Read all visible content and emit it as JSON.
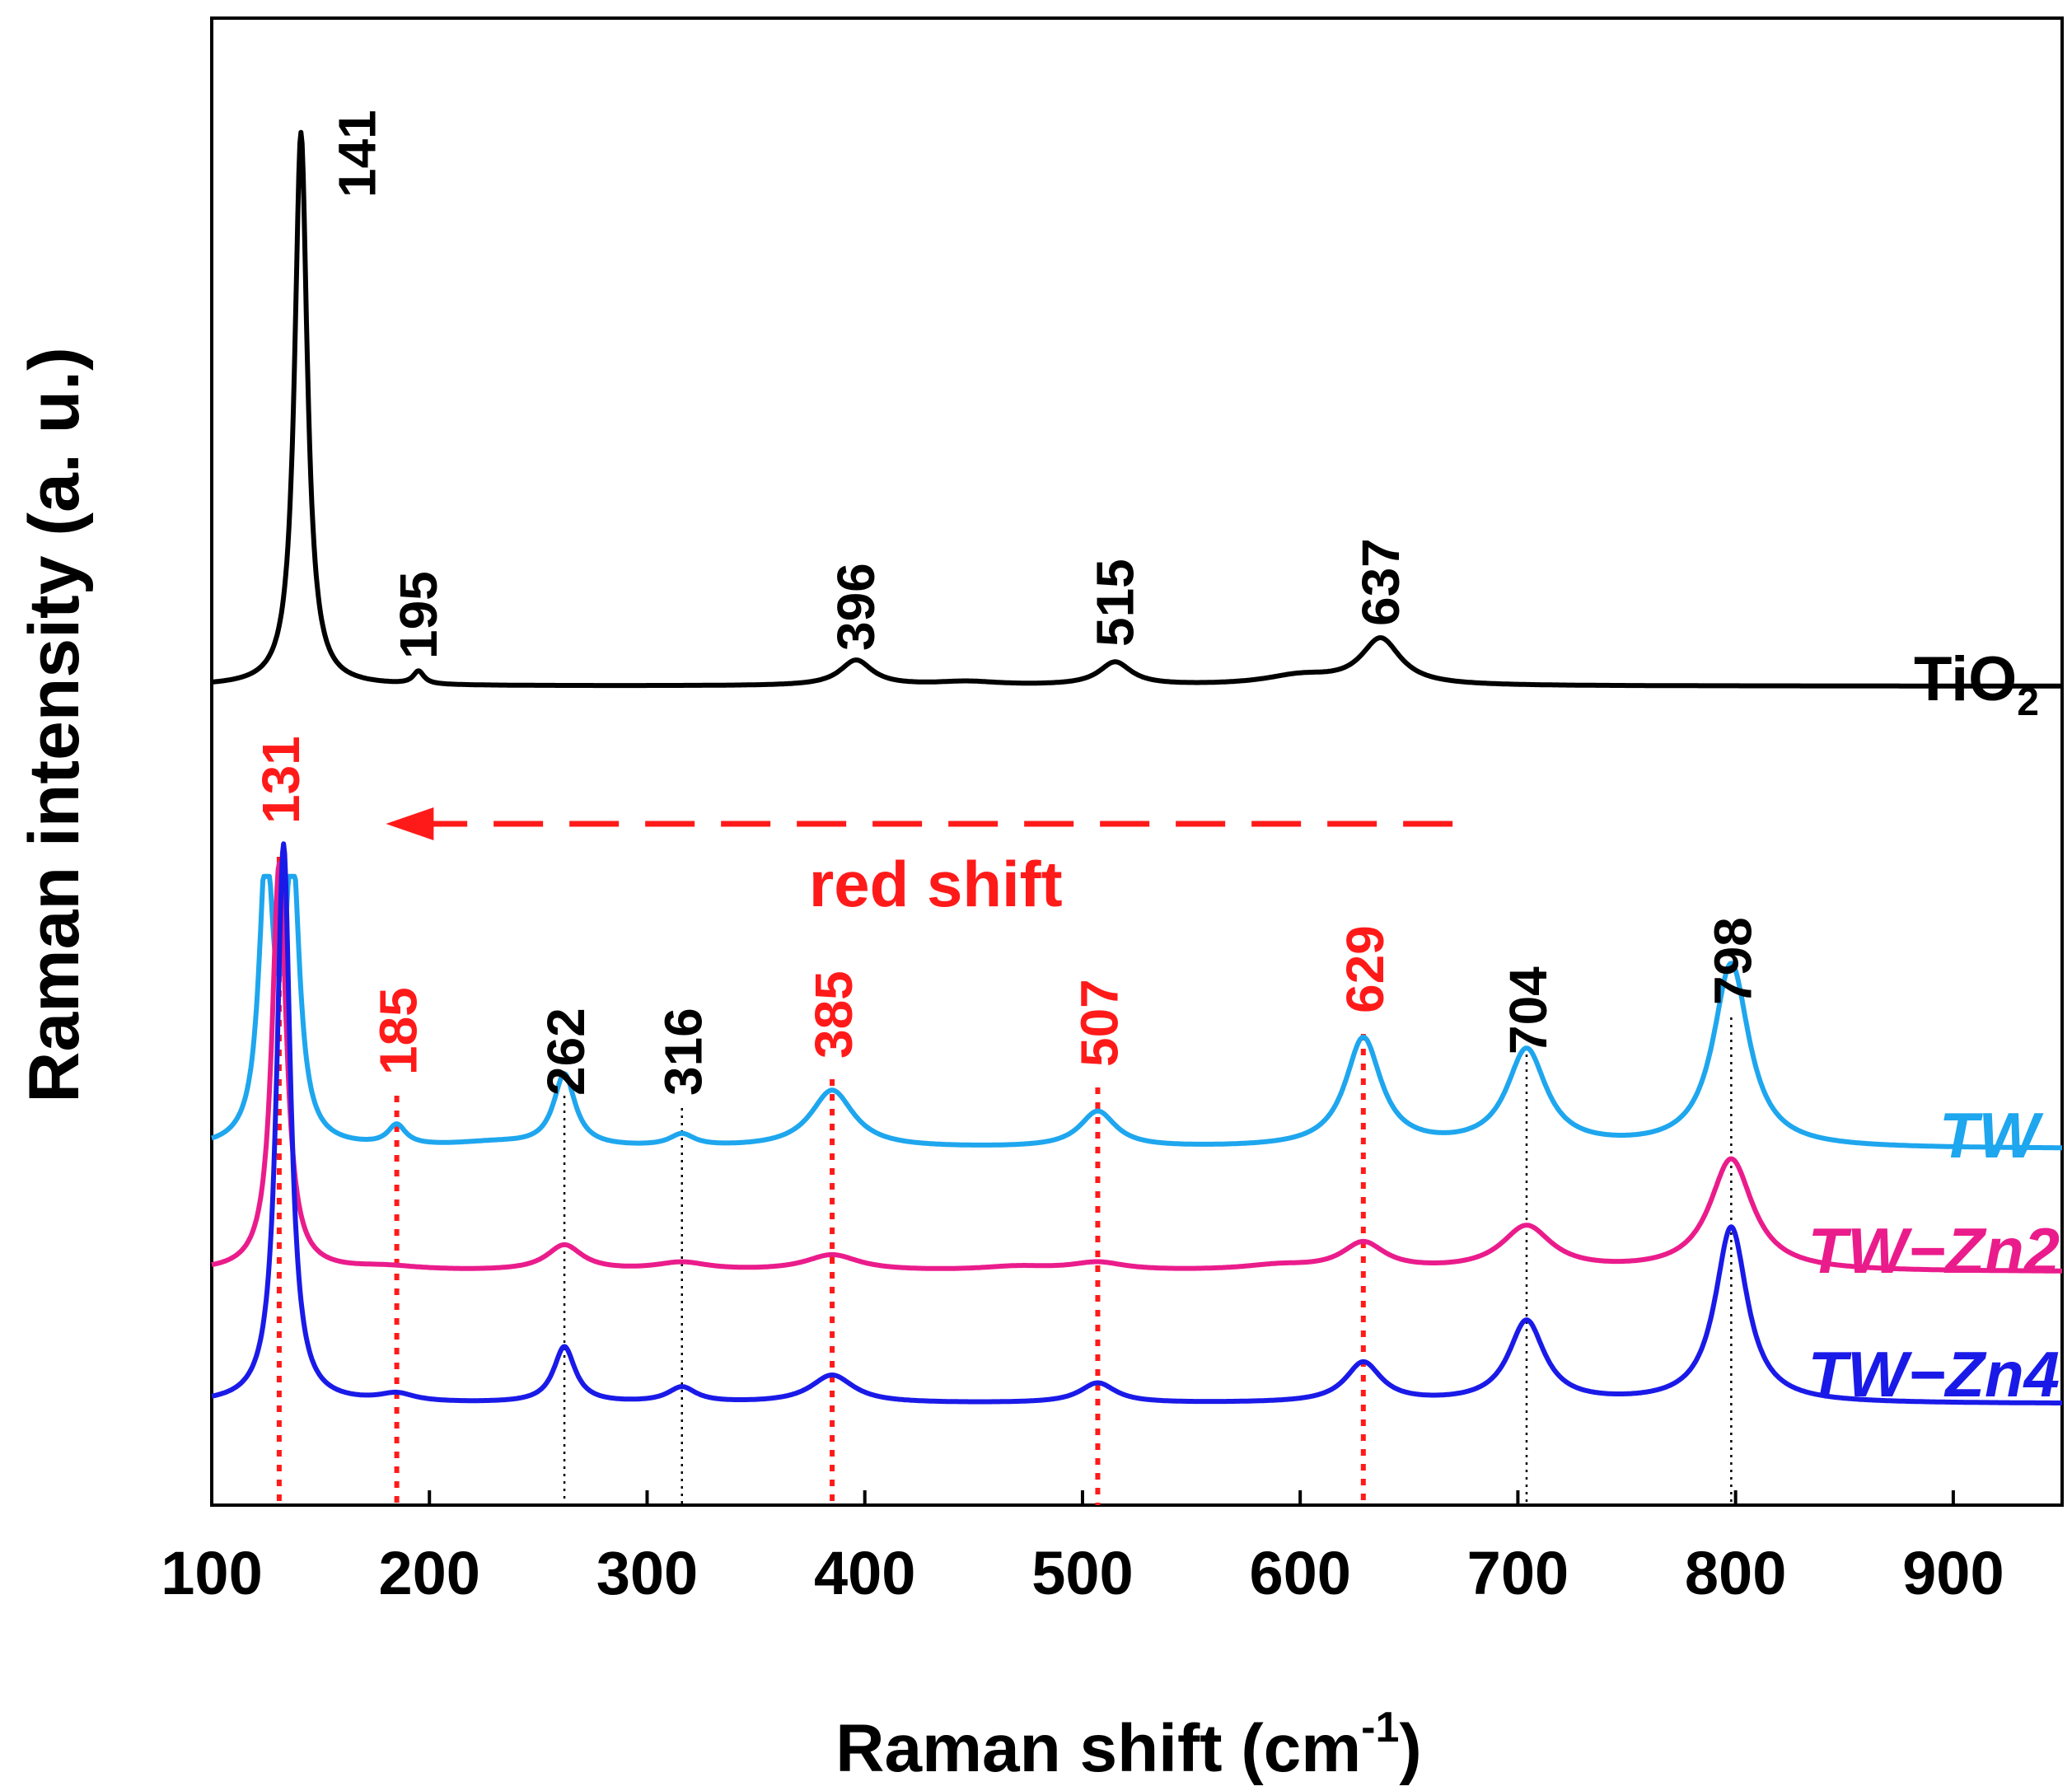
{
  "chart_data": {
    "type": "line",
    "title": "",
    "xlabel": "Raman shift (cm",
    "xlabel_sup": "-1",
    "xlabel_close": ")",
    "ylabel": "Raman intensity (a. u.)",
    "xlim": [
      100,
      950
    ],
    "x_ticks": [
      "100",
      "200",
      "300",
      "400",
      "500",
      "600",
      "700",
      "800",
      "900"
    ],
    "y_ticks": false,
    "grid": false,
    "legend": "labels at right end of each curve",
    "series": [
      {
        "name": "TiO",
        "name_sub": "2",
        "color": "#000000",
        "baseline": 0.52,
        "peaks": [
          {
            "x": 141,
            "height": 12.0,
            "width": 3.5
          },
          {
            "x": 195,
            "height": 0.28,
            "width": 3
          },
          {
            "x": 396,
            "height": 0.55,
            "width": 9
          },
          {
            "x": 447,
            "height": 0.08,
            "width": 18
          },
          {
            "x": 515,
            "height": 0.5,
            "width": 9
          },
          {
            "x": 600,
            "height": 0.2,
            "width": 20
          },
          {
            "x": 637,
            "height": 1.0,
            "width": 11
          }
        ],
        "peak_labels": [
          "141",
          "195",
          "396",
          "515",
          "637"
        ]
      },
      {
        "name": "TW",
        "color": "#1ea6ee",
        "baseline": 0.54,
        "peaks": [
          {
            "x": 125,
            "height": 3.5,
            "width": 4
          },
          {
            "x": 137,
            "height": 3.5,
            "width": 4
          },
          {
            "x": 185,
            "height": 0.25,
            "width": 5
          },
          {
            "x": 230,
            "height": 0.06,
            "width": 25
          },
          {
            "x": 262,
            "height": 0.9,
            "width": 6
          },
          {
            "x": 316,
            "height": 0.15,
            "width": 7
          },
          {
            "x": 385,
            "height": 0.72,
            "width": 12
          },
          {
            "x": 507,
            "height": 0.45,
            "width": 10
          },
          {
            "x": 629,
            "height": 1.36,
            "width": 10
          },
          {
            "x": 704,
            "height": 1.21,
            "width": 11
          },
          {
            "x": 798,
            "height": 2.3,
            "width": 10
          }
        ]
      },
      {
        "name": "TW−Zn2",
        "color": "#ea1c8c",
        "baseline": 0.3,
        "peaks": [
          {
            "x": 131,
            "height": 5.1,
            "width": 4
          },
          {
            "x": 180,
            "height": 0.05,
            "width": 20
          },
          {
            "x": 262,
            "height": 0.32,
            "width": 10
          },
          {
            "x": 316,
            "height": 0.1,
            "width": 15
          },
          {
            "x": 385,
            "height": 0.2,
            "width": 15
          },
          {
            "x": 470,
            "height": 0.05,
            "width": 20
          },
          {
            "x": 507,
            "height": 0.1,
            "width": 15
          },
          {
            "x": 590,
            "height": 0.06,
            "width": 20
          },
          {
            "x": 629,
            "height": 0.34,
            "width": 12
          },
          {
            "x": 704,
            "height": 0.55,
            "width": 14
          },
          {
            "x": 798,
            "height": 1.4,
            "width": 12
          }
        ]
      },
      {
        "name": "TW−Zn4",
        "color": "#1a1ae8",
        "baseline": 0.34,
        "peaks": [
          {
            "x": 133,
            "height": 7.0,
            "width": 3.8
          },
          {
            "x": 185,
            "height": 0.1,
            "width": 10
          },
          {
            "x": 262,
            "height": 0.7,
            "width": 6
          },
          {
            "x": 316,
            "height": 0.19,
            "width": 8
          },
          {
            "x": 385,
            "height": 0.35,
            "width": 12
          },
          {
            "x": 507,
            "height": 0.25,
            "width": 10
          },
          {
            "x": 629,
            "height": 0.5,
            "width": 10
          },
          {
            "x": 704,
            "height": 1.02,
            "width": 10
          },
          {
            "x": 798,
            "height": 2.2,
            "width": 9
          }
        ]
      }
    ],
    "red_shift_markers": [
      "131",
      "185",
      "385",
      "507",
      "629"
    ],
    "black_markers": [
      "262",
      "316",
      "704",
      "798"
    ],
    "red_shift_values": [
      131,
      185,
      385,
      507,
      629
    ],
    "black_marker_values": [
      262,
      316,
      704,
      798
    ],
    "annotation": {
      "text": "red shift",
      "arrow_from": 670,
      "arrow_to": 180,
      "color": "#ff1a1a"
    },
    "colors": {
      "red": "#ff1a1a",
      "axis": "#000000"
    }
  }
}
